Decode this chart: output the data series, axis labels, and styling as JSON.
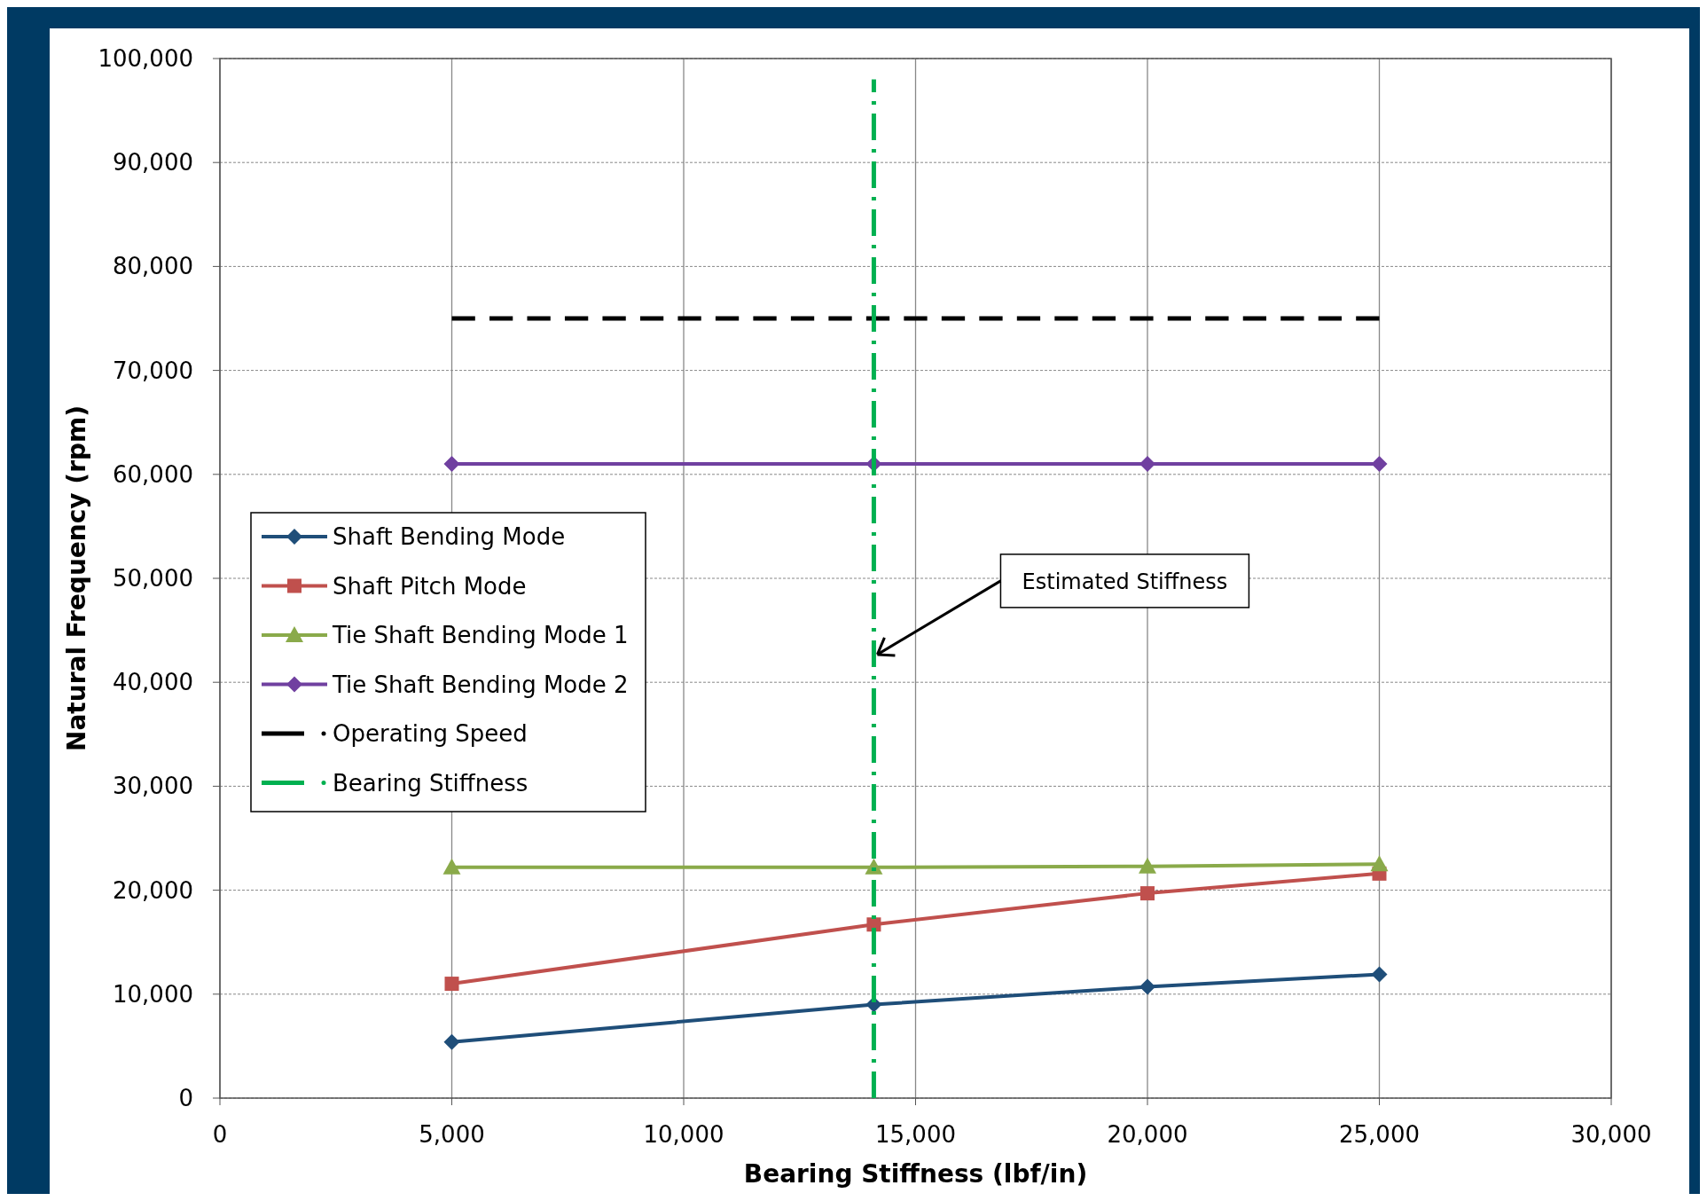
{
  "chart_data": {
    "type": "line",
    "xlabel": "Bearing Stiffness (lbf/in)",
    "ylabel": "Natural Frequency (rpm)",
    "xlim": [
      0,
      30000
    ],
    "xticks": [
      {
        "value": 0,
        "label": "0"
      },
      {
        "value": 5000,
        "label": "5,000"
      },
      {
        "value": 10000,
        "label": "10,000"
      },
      {
        "value": 15000,
        "label": "15,000"
      },
      {
        "value": 20000,
        "label": "20,000"
      },
      {
        "value": 25000,
        "label": "25,000"
      },
      {
        "value": 30000,
        "label": "30,000"
      }
    ],
    "ylim": [
      0,
      100000
    ],
    "yticks": [
      {
        "value": 0,
        "label": "0"
      },
      {
        "value": 10000,
        "label": "10,000"
      },
      {
        "value": 20000,
        "label": "20,000"
      },
      {
        "value": 30000,
        "label": "30,000"
      },
      {
        "value": 40000,
        "label": "40,000"
      },
      {
        "value": 50000,
        "label": "50,000"
      },
      {
        "value": 60000,
        "label": "60,000"
      },
      {
        "value": 70000,
        "label": "70,000"
      },
      {
        "value": 80000,
        "label": "80,000"
      },
      {
        "value": 90000,
        "label": "90,000"
      },
      {
        "value": 100000,
        "label": "100,000"
      }
    ],
    "x": [
      5000,
      14100,
      20000,
      25000
    ],
    "series": [
      {
        "name": "Shaft Bending Mode",
        "color": "#1f4e79",
        "values": [
          5400,
          9000,
          10700,
          11900
        ],
        "marker": "diamond"
      },
      {
        "name": "Shaft Pitch Mode",
        "color": "#c0504d",
        "values": [
          11000,
          16700,
          19700,
          21600
        ],
        "marker": "square"
      },
      {
        "name": "Tie Shaft Bending Mode 1",
        "color": "#8aaa4a",
        "values": [
          22200,
          22200,
          22300,
          22500
        ],
        "marker": "triangle"
      },
      {
        "name": "Tie Shaft Bending Mode 2",
        "color": "#7040a0",
        "values": [
          61000,
          61000,
          61000,
          61000
        ],
        "marker": "diamond"
      },
      {
        "name": "Operating Speed",
        "color": "#000000",
        "x": [
          5000,
          25000
        ],
        "values": [
          75000,
          75000
        ],
        "marker": "none",
        "line_style": "dashed"
      },
      {
        "name": "Bearing Stiffness",
        "color": "#00b050",
        "x": [
          14100,
          14100
        ],
        "values": [
          0,
          98000
        ],
        "marker": "none",
        "line_style": "dashed"
      }
    ],
    "annotations": [
      {
        "text": "Estimated Stiffness",
        "x": 14100,
        "y": 42500
      }
    ],
    "grid": true,
    "legend": "left"
  }
}
